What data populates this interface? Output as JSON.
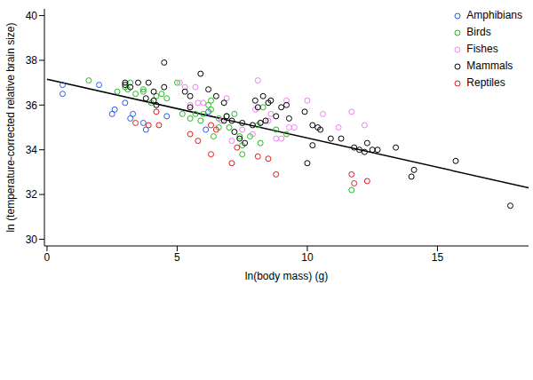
{
  "chart_data": {
    "type": "scatter",
    "x_label": "ln(body mass) (g)",
    "y_label": "ln (temperature-corrected relative brain size)",
    "xlim": [
      -0.1,
      18.5
    ],
    "ylim": [
      29.7,
      40.3
    ],
    "xticks": [
      0,
      5,
      10,
      15
    ],
    "yticks": [
      30,
      32,
      34,
      36,
      38,
      40
    ],
    "grid": false,
    "legend": "upper right",
    "marker": "circle",
    "series": [
      {
        "name": "Amphibians",
        "color": "#2a5ce6",
        "x": [
          0.6,
          0.6,
          2.0,
          2.5,
          2.6,
          3.0,
          3.2,
          3.3,
          3.7,
          3.8,
          4.6,
          6.2,
          6.1
        ],
        "y": [
          36.9,
          36.5,
          36.9,
          35.6,
          35.8,
          36.1,
          35.4,
          35.6,
          35.2,
          34.9,
          35.5,
          35.7,
          34.9
        ]
      },
      {
        "name": "Birds",
        "color": "#22bb22",
        "x": [
          1.6,
          2.7,
          3.0,
          3.1,
          3.2,
          3.4,
          3.7,
          3.7,
          4.0,
          4.2,
          4.4,
          4.6,
          5.0,
          5.2,
          5.5,
          5.7,
          5.9,
          6.0,
          6.2,
          6.3,
          6.3,
          6.4,
          6.6,
          6.6,
          6.9,
          7.0,
          7.2,
          7.4,
          7.5,
          7.5,
          7.8,
          8.1,
          8.2,
          8.3,
          8.8,
          9.2,
          11.7
        ],
        "y": [
          37.1,
          36.6,
          36.8,
          36.7,
          37.0,
          36.5,
          36.6,
          36.7,
          36.1,
          36.4,
          36.5,
          36.3,
          37.0,
          35.6,
          35.4,
          35.6,
          35.3,
          35.6,
          36.0,
          36.2,
          35.8,
          34.6,
          35.0,
          35.4,
          35.5,
          35.0,
          35.6,
          34.6,
          34.2,
          33.8,
          34.6,
          35.1,
          34.3,
          35.9,
          34.9,
          34.7,
          32.2
        ]
      },
      {
        "name": "Fishes",
        "color": "#ee82ee",
        "x": [
          5.1,
          5.3,
          5.5,
          5.7,
          5.8,
          6.0,
          6.7,
          6.9,
          7.1,
          7.5,
          7.9,
          8.0,
          8.1,
          8.2,
          8.5,
          8.6,
          8.8,
          9.0,
          9.2,
          9.3,
          9.5,
          10.0,
          10.6,
          11.2,
          11.7,
          12.2
        ],
        "y": [
          37.0,
          36.8,
          36.0,
          36.8,
          36.1,
          36.1,
          35.3,
          36.3,
          34.4,
          34.9,
          34.7,
          35.8,
          37.1,
          35.2,
          35.3,
          35.6,
          34.5,
          34.5,
          36.2,
          35.0,
          35.0,
          36.2,
          35.6,
          35.0,
          35.7,
          35.1
        ]
      },
      {
        "name": "Mammals",
        "color": "#000000",
        "x": [
          3.0,
          3.0,
          3.2,
          3.5,
          3.8,
          3.9,
          4.1,
          4.1,
          4.2,
          4.5,
          4.5,
          5.3,
          5.5,
          5.5,
          5.9,
          6.2,
          6.5,
          6.8,
          6.8,
          6.9,
          7.1,
          7.2,
          7.4,
          7.5,
          7.6,
          7.9,
          8.0,
          8.1,
          8.2,
          8.3,
          8.4,
          8.5,
          8.6,
          8.8,
          9.0,
          9.2,
          9.3,
          9.9,
          10.0,
          10.2,
          10.2,
          10.4,
          10.5,
          10.9,
          11.3,
          11.8,
          12.0,
          12.2,
          12.3,
          12.5,
          12.7,
          13.4,
          14.0,
          14.1,
          15.7,
          17.8
        ],
        "y": [
          37.0,
          36.9,
          36.8,
          37.0,
          36.3,
          37.0,
          36.2,
          36.6,
          36.0,
          36.8,
          37.9,
          36.6,
          36.4,
          35.9,
          37.4,
          36.7,
          36.4,
          35.3,
          36.1,
          35.5,
          35.3,
          34.8,
          34.5,
          35.2,
          34.3,
          35.1,
          36.2,
          35.9,
          35.2,
          36.4,
          35.3,
          36.1,
          36.2,
          35.5,
          35.9,
          36.0,
          35.4,
          35.7,
          33.4,
          34.2,
          35.1,
          35.0,
          34.9,
          34.5,
          34.5,
          34.1,
          34.0,
          33.9,
          34.3,
          34.0,
          34.0,
          34.1,
          32.8,
          33.1,
          33.5,
          31.5
        ]
      },
      {
        "name": "Reptiles",
        "color": "#e31a1c",
        "x": [
          3.4,
          3.9,
          4.3,
          4.2,
          5.5,
          5.8,
          6.3,
          6.3,
          6.5,
          7.1,
          7.3,
          8.1,
          8.5,
          8.8,
          11.7,
          11.8,
          12.3
        ],
        "y": [
          35.2,
          35.1,
          35.1,
          35.7,
          34.7,
          34.4,
          33.8,
          35.1,
          34.9,
          33.4,
          34.1,
          33.7,
          33.6,
          32.9,
          32.9,
          32.5,
          32.6
        ]
      }
    ],
    "fit_line": {
      "type": "line",
      "color": "#000000",
      "line_style": "solid",
      "x": [
        0,
        18.5
      ],
      "y": [
        37.15,
        32.3
      ]
    }
  }
}
